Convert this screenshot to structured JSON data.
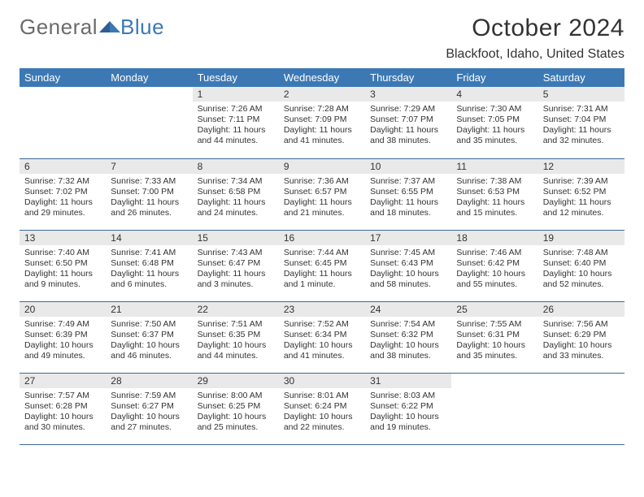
{
  "brand": {
    "part1": "General",
    "part2": "Blue"
  },
  "title": "October 2024",
  "location": "Blackfoot, Idaho, United States",
  "colors": {
    "header_bg": "#3c79b4",
    "header_text": "#ffffff",
    "daynum_bg": "#e9e9ea",
    "border": "#3c6a9a",
    "text": "#333333"
  },
  "day_headers": [
    "Sunday",
    "Monday",
    "Tuesday",
    "Wednesday",
    "Thursday",
    "Friday",
    "Saturday"
  ],
  "cells": [
    {
      "n": "",
      "sr": "",
      "ss": "",
      "dh": "",
      "dm": ""
    },
    {
      "n": "",
      "sr": "",
      "ss": "",
      "dh": "",
      "dm": ""
    },
    {
      "n": "1",
      "sr": "7:26 AM",
      "ss": "7:11 PM",
      "dh": "11",
      "dm": "44"
    },
    {
      "n": "2",
      "sr": "7:28 AM",
      "ss": "7:09 PM",
      "dh": "11",
      "dm": "41"
    },
    {
      "n": "3",
      "sr": "7:29 AM",
      "ss": "7:07 PM",
      "dh": "11",
      "dm": "38"
    },
    {
      "n": "4",
      "sr": "7:30 AM",
      "ss": "7:05 PM",
      "dh": "11",
      "dm": "35"
    },
    {
      "n": "5",
      "sr": "7:31 AM",
      "ss": "7:04 PM",
      "dh": "11",
      "dm": "32"
    },
    {
      "n": "6",
      "sr": "7:32 AM",
      "ss": "7:02 PM",
      "dh": "11",
      "dm": "29"
    },
    {
      "n": "7",
      "sr": "7:33 AM",
      "ss": "7:00 PM",
      "dh": "11",
      "dm": "26"
    },
    {
      "n": "8",
      "sr": "7:34 AM",
      "ss": "6:58 PM",
      "dh": "11",
      "dm": "24"
    },
    {
      "n": "9",
      "sr": "7:36 AM",
      "ss": "6:57 PM",
      "dh": "11",
      "dm": "21"
    },
    {
      "n": "10",
      "sr": "7:37 AM",
      "ss": "6:55 PM",
      "dh": "11",
      "dm": "18"
    },
    {
      "n": "11",
      "sr": "7:38 AM",
      "ss": "6:53 PM",
      "dh": "11",
      "dm": "15"
    },
    {
      "n": "12",
      "sr": "7:39 AM",
      "ss": "6:52 PM",
      "dh": "11",
      "dm": "12"
    },
    {
      "n": "13",
      "sr": "7:40 AM",
      "ss": "6:50 PM",
      "dh": "11",
      "dm": "9"
    },
    {
      "n": "14",
      "sr": "7:41 AM",
      "ss": "6:48 PM",
      "dh": "11",
      "dm": "6"
    },
    {
      "n": "15",
      "sr": "7:43 AM",
      "ss": "6:47 PM",
      "dh": "11",
      "dm": "3"
    },
    {
      "n": "16",
      "sr": "7:44 AM",
      "ss": "6:45 PM",
      "dh": "11",
      "dm": "1"
    },
    {
      "n": "17",
      "sr": "7:45 AM",
      "ss": "6:43 PM",
      "dh": "10",
      "dm": "58"
    },
    {
      "n": "18",
      "sr": "7:46 AM",
      "ss": "6:42 PM",
      "dh": "10",
      "dm": "55"
    },
    {
      "n": "19",
      "sr": "7:48 AM",
      "ss": "6:40 PM",
      "dh": "10",
      "dm": "52"
    },
    {
      "n": "20",
      "sr": "7:49 AM",
      "ss": "6:39 PM",
      "dh": "10",
      "dm": "49"
    },
    {
      "n": "21",
      "sr": "7:50 AM",
      "ss": "6:37 PM",
      "dh": "10",
      "dm": "46"
    },
    {
      "n": "22",
      "sr": "7:51 AM",
      "ss": "6:35 PM",
      "dh": "10",
      "dm": "44"
    },
    {
      "n": "23",
      "sr": "7:52 AM",
      "ss": "6:34 PM",
      "dh": "10",
      "dm": "41"
    },
    {
      "n": "24",
      "sr": "7:54 AM",
      "ss": "6:32 PM",
      "dh": "10",
      "dm": "38"
    },
    {
      "n": "25",
      "sr": "7:55 AM",
      "ss": "6:31 PM",
      "dh": "10",
      "dm": "35"
    },
    {
      "n": "26",
      "sr": "7:56 AM",
      "ss": "6:29 PM",
      "dh": "10",
      "dm": "33"
    },
    {
      "n": "27",
      "sr": "7:57 AM",
      "ss": "6:28 PM",
      "dh": "10",
      "dm": "30"
    },
    {
      "n": "28",
      "sr": "7:59 AM",
      "ss": "6:27 PM",
      "dh": "10",
      "dm": "27"
    },
    {
      "n": "29",
      "sr": "8:00 AM",
      "ss": "6:25 PM",
      "dh": "10",
      "dm": "25"
    },
    {
      "n": "30",
      "sr": "8:01 AM",
      "ss": "6:24 PM",
      "dh": "10",
      "dm": "22"
    },
    {
      "n": "31",
      "sr": "8:03 AM",
      "ss": "6:22 PM",
      "dh": "10",
      "dm": "19"
    },
    {
      "n": "",
      "sr": "",
      "ss": "",
      "dh": "",
      "dm": ""
    },
    {
      "n": "",
      "sr": "",
      "ss": "",
      "dh": "",
      "dm": ""
    }
  ],
  "labels": {
    "sunrise": "Sunrise:",
    "sunset": "Sunset:",
    "daylight": "Daylight:",
    "hours": "hours",
    "and": "and",
    "minute": "minute.",
    "minutes": "minutes."
  }
}
